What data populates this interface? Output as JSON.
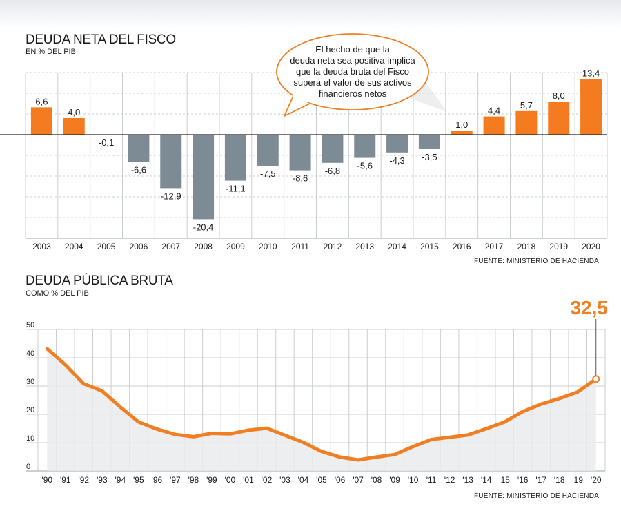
{
  "colors": {
    "positive": "#f47b20",
    "negative": "#7d8c94",
    "line": "#f07e22",
    "area": "#e9ebed",
    "grid": "#c8cdd1",
    "callout_border": "#f07e22"
  },
  "chart_data": [
    {
      "type": "bar",
      "title": "DEUDA NETA DEL FISCO",
      "subtitle": "EN % DEL PIB",
      "source": "FUENTE: MINISTERIO DE HACIENDA",
      "categories": [
        "2003",
        "2004",
        "2005",
        "2006",
        "2007",
        "2008",
        "2009",
        "2010",
        "2011",
        "2012",
        "2013",
        "2014",
        "2015",
        "2016",
        "2017",
        "2018",
        "2019",
        "2020"
      ],
      "values": [
        6.6,
        4.0,
        -0.1,
        -6.6,
        -12.9,
        -20.4,
        -11.1,
        -7.5,
        -8.6,
        -6.8,
        -5.6,
        -4.3,
        -3.5,
        1.0,
        4.4,
        5.7,
        8.0,
        13.4
      ],
      "value_labels": [
        "6,6",
        "4,0",
        "-0,1",
        "-6,6",
        "-12,9",
        "-20,4",
        "-11,1",
        "-7,5",
        "-8,6",
        "-6,8",
        "-5,6",
        "-4,3",
        "-3,5",
        "1,0",
        "4,4",
        "5,7",
        "8,0",
        "13,4"
      ],
      "ylim": [
        -25,
        15
      ],
      "grid": true,
      "annotation": {
        "lines": [
          "El hecho de que la",
          "deuda neta sea positiva implica",
          "que la deuda bruta del Fisco",
          "supera el valor de sus activos",
          "financieros netos"
        ]
      }
    },
    {
      "type": "area",
      "title": "DEUDA PÚBLICA BRUTA",
      "subtitle": "COMO % DEL PIB",
      "source": "FUENTE: MINISTERIO DE HACIENDA",
      "x": [
        "'90",
        "'91",
        "'92",
        "'93",
        "'94",
        "'95",
        "'96",
        "'97",
        "'98",
        "'99",
        "'00",
        "'01",
        "'02",
        "'03",
        "'04",
        "'05",
        "'06",
        "'07",
        "'08",
        "'09",
        "'10",
        "'11",
        "'12",
        "'13",
        "'14",
        "'15",
        "'16",
        "'17",
        "'18",
        "'19",
        "'20"
      ],
      "values": [
        43.2,
        37.5,
        30.8,
        28.3,
        22.6,
        17.3,
        14.8,
        12.9,
        12.1,
        13.3,
        13.1,
        14.4,
        15.1,
        12.6,
        10.1,
        6.9,
        4.9,
        3.9,
        4.9,
        5.8,
        8.6,
        11.1,
        11.9,
        12.7,
        14.9,
        17.3,
        21.0,
        23.6,
        25.6,
        27.9,
        32.5
      ],
      "ylim": [
        0,
        50
      ],
      "yticks": [
        "0",
        "10",
        "20",
        "30",
        "40",
        "50"
      ],
      "grid": true,
      "highlight_label": "32,5"
    }
  ]
}
